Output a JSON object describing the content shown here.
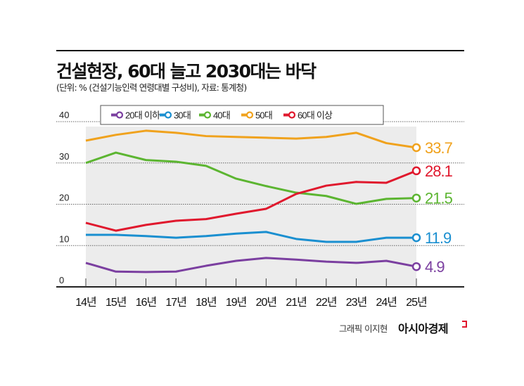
{
  "title": "건설현장, 60대 늘고 2030대는 바닥",
  "subtitle": "(단위: % (건설기능인력 연령대별 구성비), 자료: 통계청)",
  "credit": "그래픽 이지현",
  "brand": "아시아경제",
  "chart_data": {
    "type": "line",
    "categories": [
      "14년",
      "15년",
      "16년",
      "17년",
      "18년",
      "19년",
      "20년",
      "21년",
      "22년",
      "23년",
      "24년",
      "25년"
    ],
    "ylim": [
      0,
      40
    ],
    "yticks": [
      "0",
      "10",
      "20",
      "30",
      "40"
    ],
    "grid": true,
    "legend_position": "top",
    "series": [
      {
        "name": "20대 이하",
        "color": "#7b3fa0",
        "values": [
          5.8,
          3.7,
          3.6,
          3.7,
          5.1,
          6.3,
          7.0,
          6.6,
          6.1,
          5.8,
          6.3,
          4.9
        ],
        "end_label": "4.9"
      },
      {
        "name": "30대",
        "color": "#1a8fd0",
        "values": [
          12.6,
          12.6,
          12.3,
          11.9,
          12.3,
          12.9,
          13.3,
          11.6,
          10.9,
          10.9,
          11.9,
          11.9
        ],
        "end_label": "11.9"
      },
      {
        "name": "40대",
        "color": "#5cb531",
        "values": [
          30.0,
          32.5,
          30.7,
          30.3,
          29.3,
          26.2,
          24.4,
          22.8,
          22.0,
          20.1,
          21.3,
          21.5
        ],
        "end_label": "21.5"
      },
      {
        "name": "50대",
        "color": "#f0a21d",
        "values": [
          35.4,
          36.8,
          37.8,
          37.3,
          36.5,
          36.3,
          36.1,
          35.9,
          36.3,
          37.3,
          34.8,
          33.7
        ],
        "end_label": "33.7"
      },
      {
        "name": "60대 이상",
        "color": "#e0182d",
        "values": [
          15.5,
          13.6,
          15.0,
          16.0,
          16.4,
          17.7,
          18.9,
          22.5,
          24.5,
          25.4,
          25.2,
          28.1
        ],
        "end_label": "28.1"
      }
    ]
  }
}
